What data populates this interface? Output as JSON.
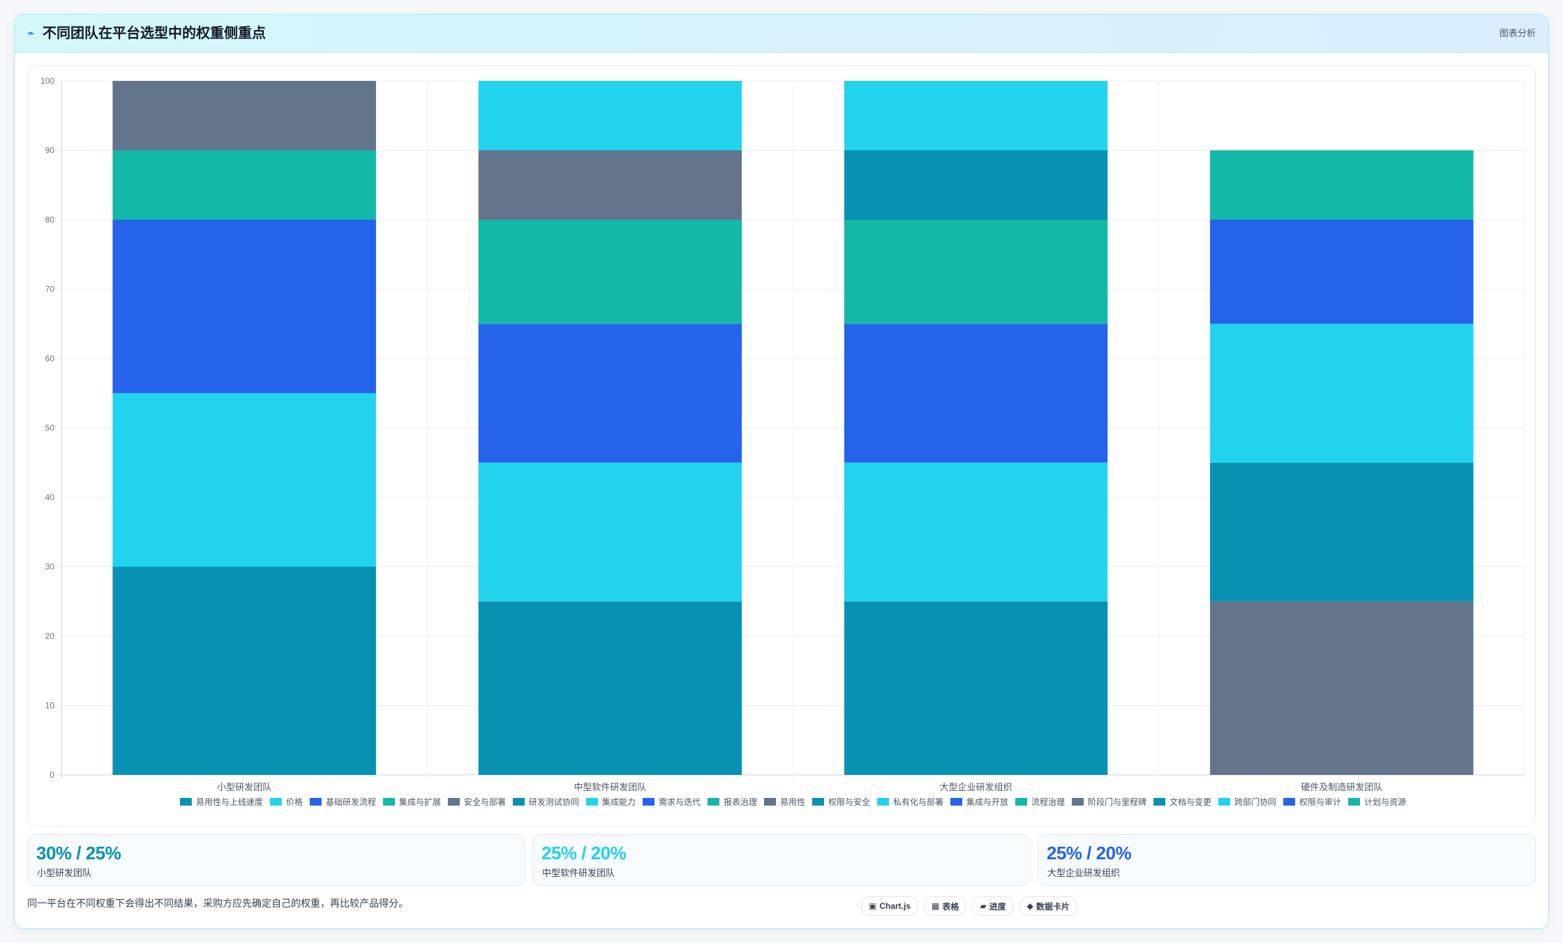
{
  "header": {
    "icon": "chart-line-icon",
    "title": "不同团队在平台选型中的权重侧重点",
    "badge": "图表分析"
  },
  "chart_data": {
    "type": "bar",
    "stacked": true,
    "categories": [
      "小型研发团队",
      "中型软件研发团队",
      "大型企业研发组织",
      "硬件及制造研发团队"
    ],
    "ylim": [
      0,
      100
    ],
    "yticks": [
      0,
      10,
      20,
      30,
      40,
      50,
      60,
      70,
      80,
      90,
      100
    ],
    "grid": true,
    "legend_position": "bottom",
    "series": [
      {
        "name": "易用性与上线速度",
        "color": "#0891b2",
        "values": [
          30,
          0,
          0,
          0
        ]
      },
      {
        "name": "价格",
        "color": "#22d3ee",
        "values": [
          25,
          0,
          0,
          0
        ]
      },
      {
        "name": "基础研发流程",
        "color": "#2563eb",
        "values": [
          25,
          0,
          0,
          0
        ]
      },
      {
        "name": "集成与扩展",
        "color": "#14b8a6",
        "values": [
          10,
          0,
          0,
          0
        ]
      },
      {
        "name": "安全与部署",
        "color": "#64748b",
        "values": [
          10,
          0,
          0,
          0
        ]
      },
      {
        "name": "研发测试协同",
        "color": "#0891b2",
        "values": [
          0,
          25,
          0,
          0
        ]
      },
      {
        "name": "集成能力",
        "color": "#22d3ee",
        "values": [
          0,
          20,
          0,
          0
        ]
      },
      {
        "name": "需求与迭代",
        "color": "#2563eb",
        "values": [
          0,
          20,
          0,
          0
        ]
      },
      {
        "name": "报表治理",
        "color": "#14b8a6",
        "values": [
          0,
          15,
          0,
          0
        ]
      },
      {
        "name": "易用性",
        "color": "#64748b",
        "values": [
          0,
          10,
          0,
          0
        ]
      },
      {
        "name": "权限与安全",
        "color": "#0891b2",
        "values": [
          0,
          0,
          25,
          0
        ]
      },
      {
        "name": "私有化与部署",
        "color": "#22d3ee",
        "values": [
          0,
          0,
          20,
          0
        ]
      },
      {
        "name": "集成与开放",
        "color": "#2563eb",
        "values": [
          0,
          0,
          20,
          0
        ]
      },
      {
        "name": "流程治理",
        "color": "#14b8a6",
        "values": [
          0,
          0,
          15,
          0
        ]
      },
      {
        "name": "阶段门与里程碑",
        "color": "#64748b",
        "values": [
          0,
          0,
          0,
          25
        ]
      },
      {
        "name": "文档与变更",
        "color": "#0891b2",
        "values": [
          0,
          0,
          10,
          20
        ]
      },
      {
        "name": "跨部门协同",
        "color": "#22d3ee",
        "values": [
          0,
          10,
          10,
          20
        ]
      },
      {
        "name": "权限与审计",
        "color": "#2563eb",
        "values": [
          0,
          0,
          0,
          15
        ]
      },
      {
        "name": "计划与资源",
        "color": "#14b8a6",
        "values": [
          0,
          0,
          0,
          10
        ]
      }
    ]
  },
  "stats": [
    {
      "value": "30% / 25%",
      "label": "小型研发团队",
      "color": "#0891b2"
    },
    {
      "value": "25% / 20%",
      "label": "中型软件研发团队",
      "color": "#22d3ee"
    },
    {
      "value": "25% / 20%",
      "label": "大型企业研发组织",
      "color": "#2563eb"
    }
  ],
  "note": "同一平台在不同权重下会得出不同结果，采购方应先确定自己的权重，再比较产品得分。",
  "chips": [
    {
      "icon": "▣",
      "label": "Chart.js"
    },
    {
      "icon": "▦",
      "label": "表格"
    },
    {
      "icon": "▰",
      "label": "进度"
    },
    {
      "icon": "◆",
      "label": "数据卡片"
    }
  ]
}
